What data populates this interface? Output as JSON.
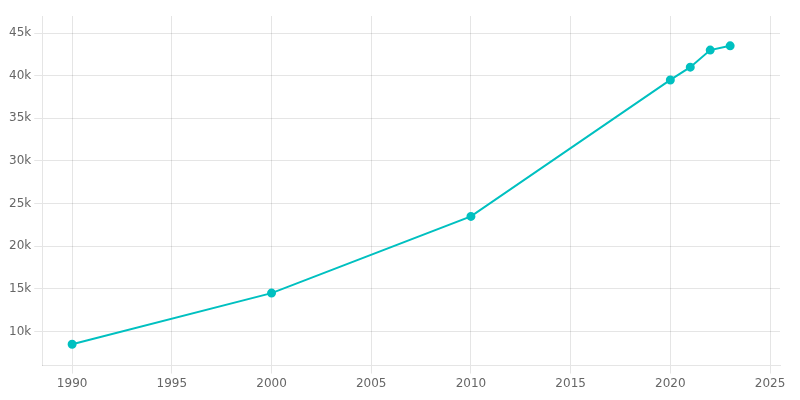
{
  "chart_data": {
    "type": "line",
    "x": [
      1990,
      2000,
      2010,
      2020,
      2021,
      2022,
      2023
    ],
    "values": [
      8500,
      14500,
      23500,
      39500,
      41000,
      43000,
      43500
    ],
    "color": "#00c0c0",
    "marker": "circle",
    "line_style": "solid",
    "xlim": [
      1988.5,
      2025.5
    ],
    "xticks": [
      1990,
      1995,
      2000,
      2005,
      2010,
      2015,
      2020,
      2025
    ],
    "ylim": [
      6000,
      47000
    ],
    "yticks": [
      {
        "value": 10000,
        "label": "10k"
      },
      {
        "value": 15000,
        "label": "15k"
      },
      {
        "value": 20000,
        "label": "20k"
      },
      {
        "value": 25000,
        "label": "25k"
      },
      {
        "value": 30000,
        "label": "30k"
      },
      {
        "value": 35000,
        "label": "35k"
      },
      {
        "value": 40000,
        "label": "40k"
      },
      {
        "value": 45000,
        "label": "45k"
      }
    ],
    "grid": true
  }
}
